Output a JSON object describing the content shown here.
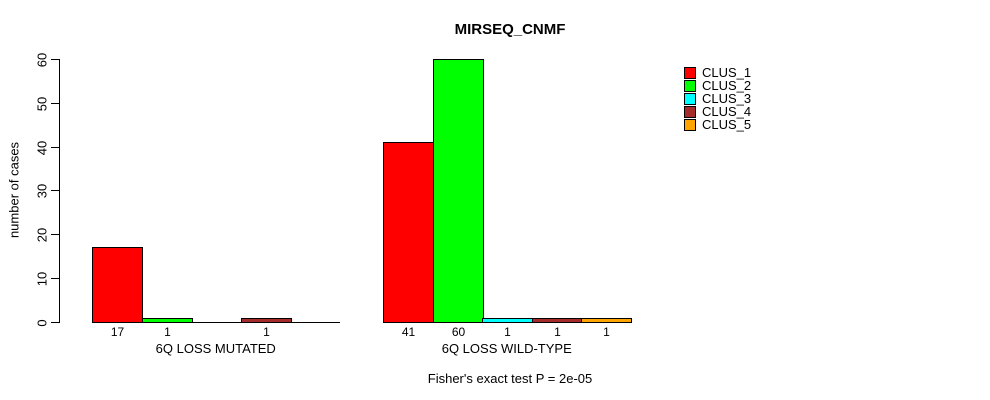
{
  "title": "MIRSEQ_CNMF",
  "ylabel": "number of cases",
  "footer": "Fisher's exact test P = 2e-05",
  "chart_data": {
    "type": "bar",
    "groups": [
      "6Q LOSS MUTATED",
      "6Q LOSS WILD-TYPE"
    ],
    "series": [
      {
        "name": "CLUS_1",
        "color": "#FF0000",
        "values": [
          17,
          41
        ]
      },
      {
        "name": "CLUS_2",
        "color": "#00FF00",
        "values": [
          1,
          60
        ]
      },
      {
        "name": "CLUS_3",
        "color": "#00FFFF",
        "values": [
          0,
          1
        ]
      },
      {
        "name": "CLUS_4",
        "color": "#A52A2A",
        "values": [
          1,
          1
        ]
      },
      {
        "name": "CLUS_5",
        "color": "#FFA500",
        "values": [
          0,
          1
        ]
      }
    ],
    "bar_value_labels": {
      "6Q LOSS MUTATED": [
        17,
        1,
        null,
        1,
        null
      ],
      "6Q LOSS WILD-TYPE": [
        41,
        60,
        1,
        1,
        1
      ]
    },
    "yticks": [
      0,
      10,
      20,
      30,
      40,
      50,
      60
    ],
    "ylim": [
      0,
      60
    ],
    "ylabel": "number of cases",
    "grid": false,
    "legend_position": "right",
    "axis_color": "#000000",
    "bar_border_color": "#000000"
  }
}
